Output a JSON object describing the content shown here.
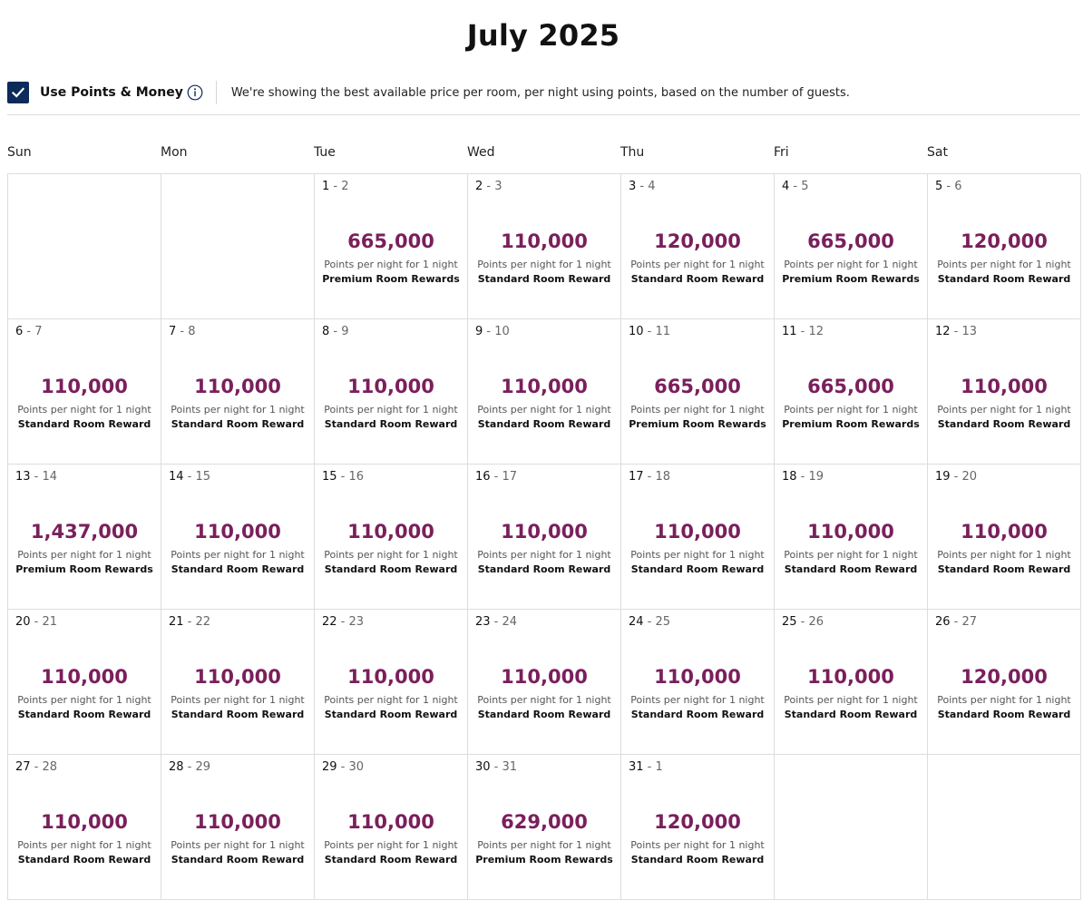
{
  "header": {
    "title": "July 2025"
  },
  "points_toggle": {
    "checked": true,
    "label": "Use Points & Money",
    "info_icon": "info-circle-icon",
    "check_icon": "checkmark-icon",
    "description": "We're showing the best available price per room, per night using points, based on the number of guests."
  },
  "colors": {
    "price": "#7a1f5c",
    "checkbox": "#0c2a5a",
    "border": "#dddddd"
  },
  "weekdays": [
    "Sun",
    "Mon",
    "Tue",
    "Wed",
    "Thu",
    "Fri",
    "Sat"
  ],
  "calendar": {
    "leading_empty": 2,
    "trailing_empty": 2,
    "days": [
      {
        "start": "1",
        "end": "2",
        "price": "665,000",
        "sub": "Points per night for 1 night",
        "type": "Premium Room Rewards"
      },
      {
        "start": "2",
        "end": "3",
        "price": "110,000",
        "sub": "Points per night for 1 night",
        "type": "Standard Room Reward"
      },
      {
        "start": "3",
        "end": "4",
        "price": "120,000",
        "sub": "Points per night for 1 night",
        "type": "Standard Room Reward"
      },
      {
        "start": "4",
        "end": "5",
        "price": "665,000",
        "sub": "Points per night for 1 night",
        "type": "Premium Room Rewards"
      },
      {
        "start": "5",
        "end": "6",
        "price": "120,000",
        "sub": "Points per night for 1 night",
        "type": "Standard Room Reward"
      },
      {
        "start": "6",
        "end": "7",
        "price": "110,000",
        "sub": "Points per night for 1 night",
        "type": "Standard Room Reward"
      },
      {
        "start": "7",
        "end": "8",
        "price": "110,000",
        "sub": "Points per night for 1 night",
        "type": "Standard Room Reward"
      },
      {
        "start": "8",
        "end": "9",
        "price": "110,000",
        "sub": "Points per night for 1 night",
        "type": "Standard Room Reward"
      },
      {
        "start": "9",
        "end": "10",
        "price": "110,000",
        "sub": "Points per night for 1 night",
        "type": "Standard Room Reward"
      },
      {
        "start": "10",
        "end": "11",
        "price": "665,000",
        "sub": "Points per night for 1 night",
        "type": "Premium Room Rewards"
      },
      {
        "start": "11",
        "end": "12",
        "price": "665,000",
        "sub": "Points per night for 1 night",
        "type": "Premium Room Rewards"
      },
      {
        "start": "12",
        "end": "13",
        "price": "110,000",
        "sub": "Points per night for 1 night",
        "type": "Standard Room Reward"
      },
      {
        "start": "13",
        "end": "14",
        "price": "1,437,000",
        "sub": "Points per night for 1 night",
        "type": "Premium Room Rewards"
      },
      {
        "start": "14",
        "end": "15",
        "price": "110,000",
        "sub": "Points per night for 1 night",
        "type": "Standard Room Reward"
      },
      {
        "start": "15",
        "end": "16",
        "price": "110,000",
        "sub": "Points per night for 1 night",
        "type": "Standard Room Reward"
      },
      {
        "start": "16",
        "end": "17",
        "price": "110,000",
        "sub": "Points per night for 1 night",
        "type": "Standard Room Reward"
      },
      {
        "start": "17",
        "end": "18",
        "price": "110,000",
        "sub": "Points per night for 1 night",
        "type": "Standard Room Reward"
      },
      {
        "start": "18",
        "end": "19",
        "price": "110,000",
        "sub": "Points per night for 1 night",
        "type": "Standard Room Reward"
      },
      {
        "start": "19",
        "end": "20",
        "price": "110,000",
        "sub": "Points per night for 1 night",
        "type": "Standard Room Reward"
      },
      {
        "start": "20",
        "end": "21",
        "price": "110,000",
        "sub": "Points per night for 1 night",
        "type": "Standard Room Reward"
      },
      {
        "start": "21",
        "end": "22",
        "price": "110,000",
        "sub": "Points per night for 1 night",
        "type": "Standard Room Reward"
      },
      {
        "start": "22",
        "end": "23",
        "price": "110,000",
        "sub": "Points per night for 1 night",
        "type": "Standard Room Reward"
      },
      {
        "start": "23",
        "end": "24",
        "price": "110,000",
        "sub": "Points per night for 1 night",
        "type": "Standard Room Reward"
      },
      {
        "start": "24",
        "end": "25",
        "price": "110,000",
        "sub": "Points per night for 1 night",
        "type": "Standard Room Reward"
      },
      {
        "start": "25",
        "end": "26",
        "price": "110,000",
        "sub": "Points per night for 1 night",
        "type": "Standard Room Reward"
      },
      {
        "start": "26",
        "end": "27",
        "price": "120,000",
        "sub": "Points per night for 1 night",
        "type": "Standard Room Reward"
      },
      {
        "start": "27",
        "end": "28",
        "price": "110,000",
        "sub": "Points per night for 1 night",
        "type": "Standard Room Reward"
      },
      {
        "start": "28",
        "end": "29",
        "price": "110,000",
        "sub": "Points per night for 1 night",
        "type": "Standard Room Reward"
      },
      {
        "start": "29",
        "end": "30",
        "price": "110,000",
        "sub": "Points per night for 1 night",
        "type": "Standard Room Reward"
      },
      {
        "start": "30",
        "end": "31",
        "price": "629,000",
        "sub": "Points per night for 1 night",
        "type": "Premium Room Rewards"
      },
      {
        "start": "31",
        "end": "1",
        "price": "120,000",
        "sub": "Points per night for 1 night",
        "type": "Standard Room Reward"
      }
    ]
  }
}
